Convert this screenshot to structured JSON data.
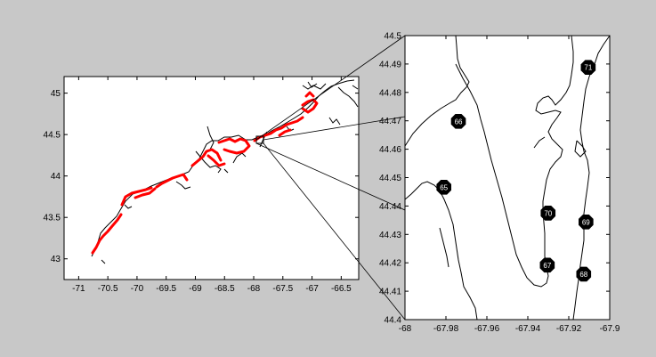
{
  "colors": {
    "figure_bg": "#c8c8c8",
    "axes_bg": "#ffffff",
    "coastline": "#000000",
    "highlight": "#ff0000",
    "marker": "#000000",
    "marker_text": "#ffffff"
  },
  "chart_data": [
    {
      "type": "map",
      "xlim": [
        -71.25,
        -66.2
      ],
      "ylim": [
        42.75,
        45.2
      ],
      "xticks": [
        -71,
        -70.5,
        -70,
        -69.5,
        -69,
        -68.5,
        -68,
        -67.5,
        -67,
        -66.5
      ],
      "xtick_labels": [
        "-71",
        "-70.5",
        "-70",
        "-69.5",
        "-69",
        "-68.5",
        "-68",
        "-67.5",
        "-67",
        "-66.5"
      ],
      "yticks": [
        43,
        43.5,
        44,
        44.5,
        45
      ],
      "ytick_labels": [
        "43",
        "43.5",
        "44",
        "44.5",
        "45"
      ],
      "zoom_box": {
        "x": [
          -68,
          -67.9
        ],
        "y": [
          44.4,
          44.5
        ]
      }
    },
    {
      "type": "map",
      "xlim": [
        -68,
        -67.9
      ],
      "ylim": [
        44.4,
        44.5
      ],
      "xticks": [
        -68,
        -67.98,
        -67.96,
        -67.94,
        -67.92,
        -67.9
      ],
      "xtick_labels": [
        "-68",
        "-67.98",
        "-67.96",
        "-67.94",
        "-67.92",
        "-67.9"
      ],
      "yticks": [
        44.4,
        44.41,
        44.42,
        44.43,
        44.44,
        44.45,
        44.46,
        44.47,
        44.48,
        44.49,
        44.5
      ],
      "ytick_labels": [
        "44.4",
        "44.41",
        "44.42",
        "44.43",
        "44.44",
        "44.45",
        "44.46",
        "44.47",
        "44.48",
        "44.49",
        "44.5"
      ],
      "stations": [
        {
          "id": "65",
          "x": -67.981,
          "y": 44.4466
        },
        {
          "id": "66",
          "x": -67.9739,
          "y": 44.4698
        },
        {
          "id": "67",
          "x": -67.9305,
          "y": 44.4192
        },
        {
          "id": "68",
          "x": -67.9127,
          "y": 44.416
        },
        {
          "id": "69",
          "x": -67.9116,
          "y": 44.4344
        },
        {
          "id": "70",
          "x": -67.9301,
          "y": 44.4375
        },
        {
          "id": "71",
          "x": -67.9105,
          "y": 44.4888
        }
      ]
    }
  ]
}
